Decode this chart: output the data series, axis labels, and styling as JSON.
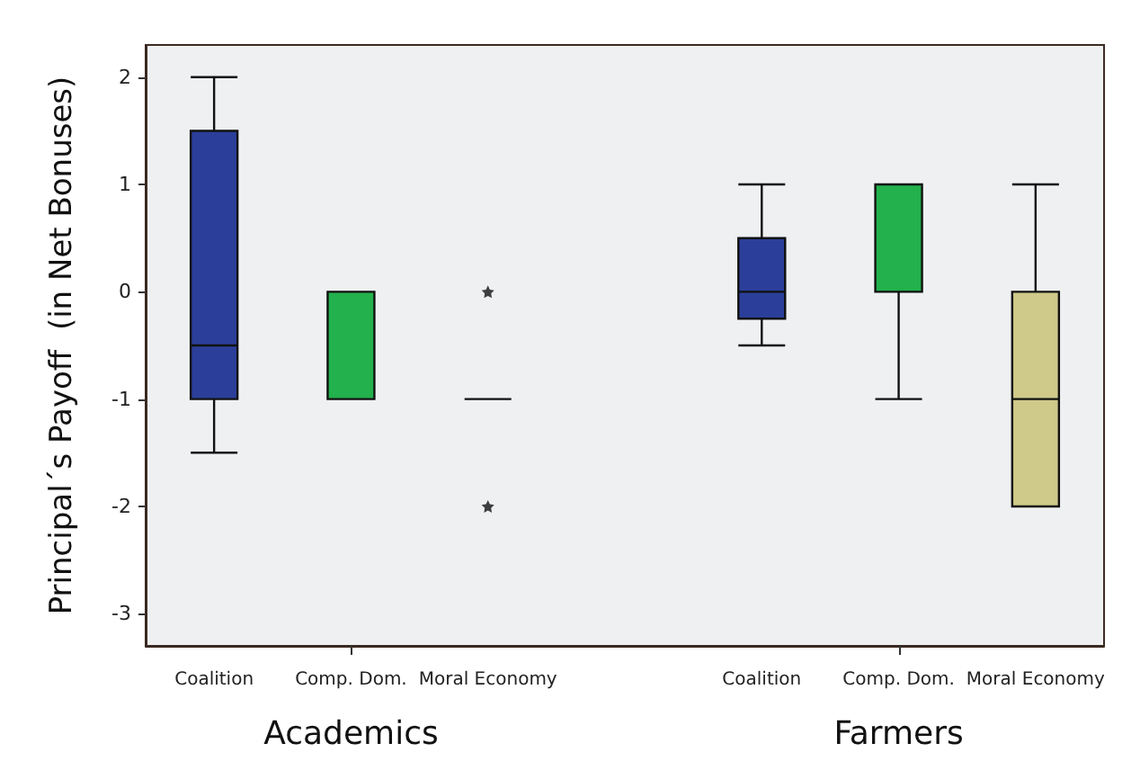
{
  "chart_data": {
    "type": "box",
    "ylabel": "Principal´s Payoff  (in Net Bonuses)",
    "categories": [
      "Coalition",
      "Comp. Dom.",
      "Moral Economy",
      null,
      "Coalition",
      "Comp. Dom.",
      "Moral Economy"
    ],
    "boxes": [
      {
        "low": -1.5,
        "q1": -1,
        "median": -0.5,
        "q3": 1.5,
        "high": 2
      },
      {
        "low": -1,
        "q1": -1,
        "median": -1,
        "q3": 0,
        "high": 0
      },
      {
        "low": -1,
        "q1": -1,
        "median": -1,
        "q3": -1,
        "high": -1,
        "outliers": [
          0,
          -2
        ]
      },
      null,
      {
        "low": -0.5,
        "q1": -0.25,
        "median": 0,
        "q3": 0.5,
        "high": 1
      },
      {
        "low": -1,
        "q1": 0,
        "median": 0,
        "q3": 1,
        "high": 1
      },
      {
        "low": -2,
        "q1": -2,
        "median": -1,
        "q3": 0,
        "high": 1
      }
    ],
    "colors": [
      "#2b3f9a",
      "#22b14c",
      "#111111",
      null,
      "#2b3f9a",
      "#22b14c",
      "#cfc98a"
    ],
    "ylim": [
      -3.3,
      2.3
    ],
    "yticks": [
      -3,
      -2,
      -1,
      0,
      1,
      2
    ],
    "grid": false,
    "annotations": [
      "Academics",
      "Farmers"
    ]
  }
}
